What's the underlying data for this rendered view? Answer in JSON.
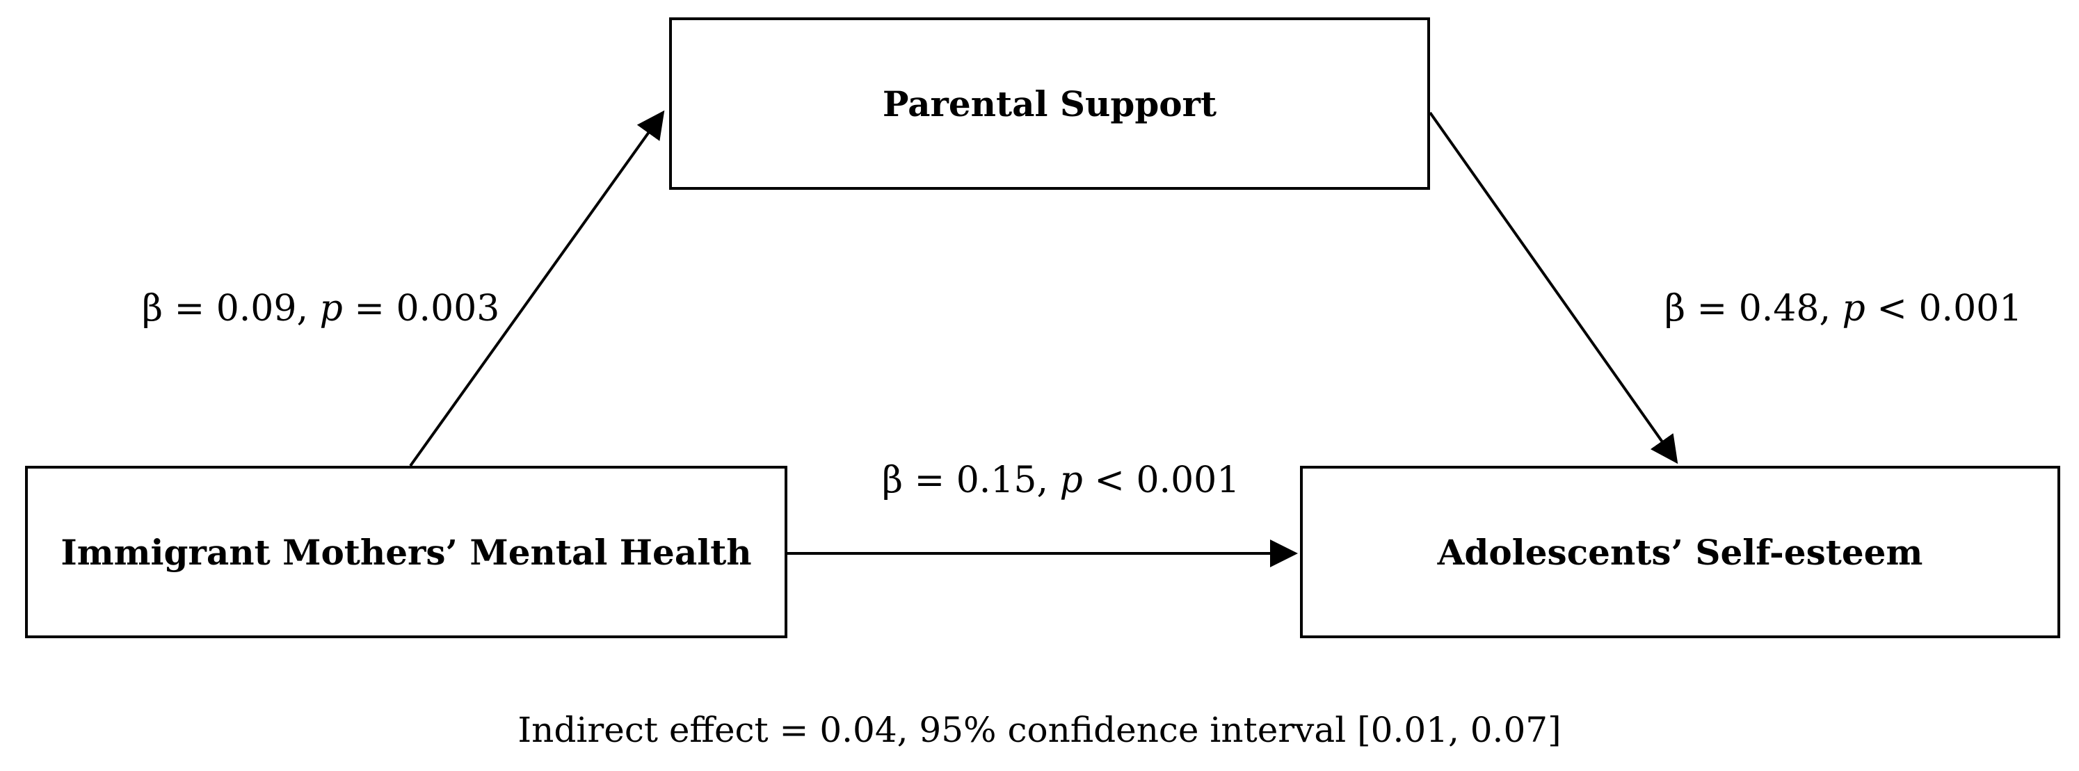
{
  "diagram": {
    "nodes": {
      "mediator": "Parental Support",
      "predictor": "Immigrant Mothers’ Mental Health",
      "outcome": "Adolescents’ Self-esteem"
    },
    "paths": {
      "a": {
        "beta_text": "β = 0.09, ",
        "p_symbol": "p",
        "p_text": " = 0.003"
      },
      "b": {
        "beta_text": "β = 0.48, ",
        "p_symbol": "p",
        "p_text": " < 0.001"
      },
      "c": {
        "beta_text": "β = 0.15, ",
        "p_symbol": "p",
        "p_text": " < 0.001"
      }
    },
    "indirect_effect": "Indirect effect = 0.04, 95% confidence interval [0.01, 0.07]"
  }
}
